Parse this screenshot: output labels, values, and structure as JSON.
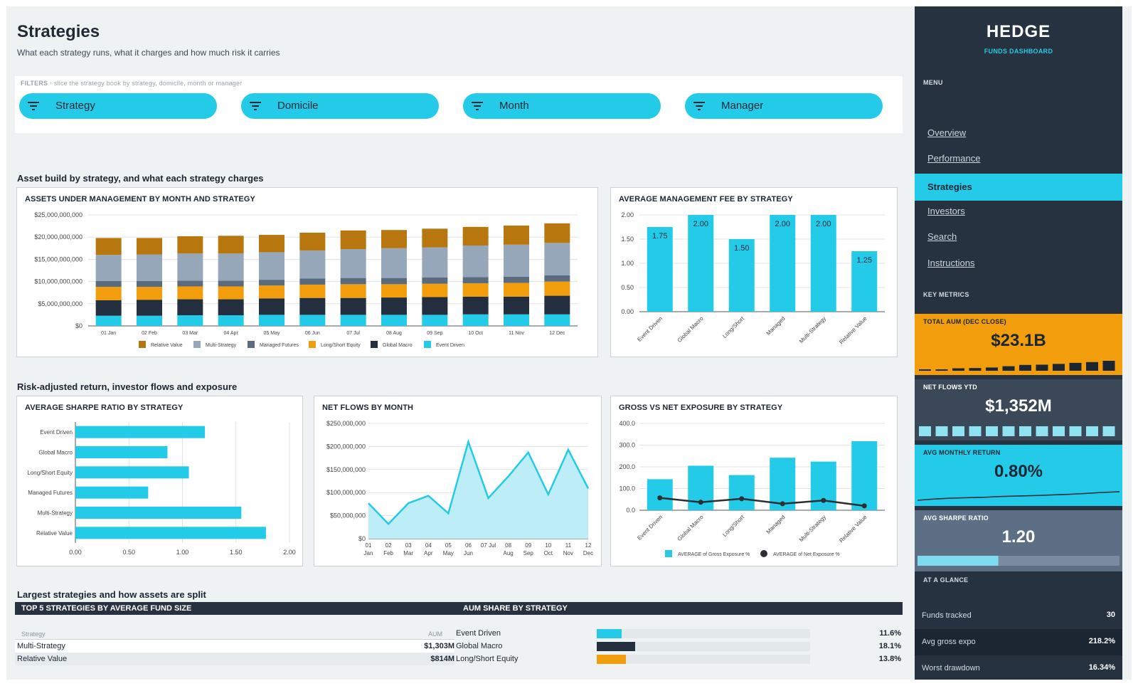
{
  "page": {
    "title": "Strategies",
    "subtitle": "What each strategy runs, what it charges and how much risk it carries"
  },
  "filters": {
    "caption": "FILTERS",
    "hint": "slice the strategy book by strategy, domicile, month or manager",
    "items": [
      {
        "label": "Strategy",
        "icon": "filter-icon"
      },
      {
        "label": "Domicile",
        "icon": "filter-icon"
      },
      {
        "label": "Month",
        "icon": "filter-icon"
      },
      {
        "label": "Manager",
        "icon": "filter-icon"
      }
    ]
  },
  "sections": {
    "s1": "Asset build by strategy, and what each strategy charges",
    "s2": "Risk-adjusted return, investor flows and exposure",
    "s3": "Largest strategies and how assets are split"
  },
  "colors": {
    "accent": "#24cbe8",
    "navy": "#263240",
    "orange": "#f29d0c",
    "relative_value": "#b8760f",
    "multi_strategy": "#95a7b8",
    "managed_futures": "#5a6b80",
    "long_short_equity": "#f29d0c",
    "global_macro": "#232f3e",
    "event_driven": "#24cbe8"
  },
  "chart_data": [
    {
      "id": "aum",
      "type": "bar",
      "stacked": true,
      "title": "ASSETS UNDER MANAGEMENT BY MONTH AND STRATEGY",
      "categories": [
        "01 Jan",
        "02 Feb",
        "03 Mar",
        "04 Apr",
        "05 May",
        "06 Jun",
        "07 Jul",
        "08 Aug",
        "09 Sep",
        "10 Oct",
        "11 Nov",
        "12 Dec"
      ],
      "ylim": [
        0,
        25000000000
      ],
      "yticks": [
        "$0",
        "$5,000,000,000",
        "$10,000,000,000",
        "$15,000,000,000",
        "$20,000,000,000",
        "$25,000,000,000"
      ],
      "legend": "bottom",
      "series": [
        {
          "name": "Event Driven",
          "values": [
            2300000000,
            2300000000,
            2400000000,
            2400000000,
            2500000000,
            2500000000,
            2500000000,
            2500000000,
            2500000000,
            2600000000,
            2600000000,
            2600000000
          ]
        },
        {
          "name": "Global Macro",
          "values": [
            3500000000,
            3600000000,
            3600000000,
            3600000000,
            3700000000,
            3800000000,
            3800000000,
            3900000000,
            4000000000,
            4000000000,
            4000000000,
            4200000000
          ]
        },
        {
          "name": "Long/Short Equity",
          "values": [
            3000000000,
            2900000000,
            2900000000,
            2900000000,
            2900000000,
            3000000000,
            3100000000,
            3000000000,
            3000000000,
            3000000000,
            3100000000,
            3200000000
          ]
        },
        {
          "name": "Managed Futures",
          "values": [
            1300000000,
            1300000000,
            1300000000,
            1300000000,
            1300000000,
            1400000000,
            1400000000,
            1400000000,
            1400000000,
            1400000000,
            1400000000,
            1400000000
          ]
        },
        {
          "name": "Multi-Strategy",
          "values": [
            5900000000,
            6000000000,
            6100000000,
            6100000000,
            6200000000,
            6300000000,
            6500000000,
            6700000000,
            6800000000,
            7100000000,
            7200000000,
            7300000000
          ]
        },
        {
          "name": "Relative Value",
          "values": [
            3800000000,
            3700000000,
            3900000000,
            4000000000,
            3900000000,
            4000000000,
            4200000000,
            4100000000,
            4200000000,
            4200000000,
            4300000000,
            4400000000
          ]
        }
      ]
    },
    {
      "id": "fee",
      "type": "bar",
      "title": "AVERAGE MANAGEMENT FEE BY STRATEGY",
      "categories": [
        "Event Driven",
        "Global Macro",
        "Long/Short",
        "Managed",
        "Multi-Strategy",
        "Relative Value"
      ],
      "values": [
        1.75,
        2.0,
        1.5,
        2.0,
        2.0,
        1.25
      ],
      "labels": [
        "1.75",
        "2.00",
        "1.50",
        "2.00",
        "2.00",
        "1.25"
      ],
      "ylim": [
        0,
        2
      ],
      "yticks": [
        "0.00",
        "0.50",
        "1.00",
        "1.50",
        "2.00"
      ]
    },
    {
      "id": "sharpe",
      "type": "bar",
      "orientation": "horizontal",
      "title": "AVERAGE SHARPE RATIO BY STRATEGY",
      "categories": [
        "Event Driven",
        "Global Macro",
        "Long/Short Equity",
        "Managed Futures",
        "Multi-Strategy",
        "Relative Value"
      ],
      "values": [
        1.21,
        0.86,
        1.06,
        0.68,
        1.55,
        1.78
      ],
      "xlim": [
        0,
        2
      ],
      "xticks": [
        "0.00",
        "0.50",
        "1.00",
        "1.50",
        "2.00"
      ]
    },
    {
      "id": "flows",
      "type": "area",
      "title": "NET FLOWS BY MONTH",
      "x_top": [
        "01",
        "02",
        "03",
        "04",
        "05",
        "06",
        "07 Jul",
        "08",
        "09",
        "10",
        "11",
        "12"
      ],
      "x_bottom": [
        "Jan",
        "Feb",
        "Mar",
        "Apr",
        "May",
        "Jun",
        "",
        "Aug",
        "Sep",
        "Oct",
        "Nov",
        "Dec"
      ],
      "values": [
        77000000,
        32000000,
        77000000,
        93000000,
        55000000,
        210000000,
        88000000,
        135000000,
        187000000,
        96000000,
        193000000,
        109000000
      ],
      "ylim": [
        0,
        250000000
      ],
      "yticks": [
        "$0",
        "$50,000,000",
        "$100,000,000",
        "$150,000,000",
        "$200,000,000",
        "$250,000,000"
      ]
    },
    {
      "id": "exposure",
      "type": "bar",
      "title": "GROSS VS NET EXPOSURE BY STRATEGY",
      "categories": [
        "Event Driven",
        "Global Macro",
        "Long/Short",
        "Managed",
        "Multi-Strategy",
        "Relative Value"
      ],
      "ylim": [
        0,
        400
      ],
      "yticks": [
        "0.0",
        "100.0",
        "200.0",
        "300.0",
        "400.0"
      ],
      "legend": "bottom",
      "series": [
        {
          "name": "AVERAGE of Gross Exposure %",
          "kind": "bar",
          "values": [
            143,
            205,
            162,
            242,
            224,
            318
          ]
        },
        {
          "name": "AVERAGE of Net Exposure %",
          "kind": "line",
          "values": [
            57,
            37,
            53,
            30,
            45,
            20
          ]
        }
      ]
    }
  ],
  "tables": {
    "top5": {
      "title": "TOP 5 STRATEGIES BY AVERAGE FUND SIZE",
      "col_strategy": "Strategy",
      "col_aum": "AUM",
      "rows": [
        {
          "strategy": "Multi-Strategy",
          "aum": "$1,303M"
        },
        {
          "strategy": "Relative Value",
          "aum": "$814M"
        }
      ]
    },
    "share": {
      "title": "AUM SHARE BY STRATEGY",
      "rows": [
        {
          "strategy": "Event Driven",
          "share": 11.6,
          "label": "11.6%",
          "color": "#24cbe8"
        },
        {
          "strategy": "Global Macro",
          "share": 18.1,
          "label": "18.1%",
          "color": "#232f3e"
        },
        {
          "strategy": "Long/Short Equity",
          "share": 13.8,
          "label": "13.8%",
          "color": "#f29d0c"
        }
      ]
    }
  },
  "sidebar": {
    "brand": "HEDGE",
    "brand_sub": "FUNDS DASHBOARD",
    "menu_caption": "MENU",
    "nav": [
      "Overview",
      "Performance",
      "Strategies",
      "Investors",
      "Search",
      "Instructions"
    ],
    "active": "Strategies",
    "metrics_caption": "KEY METRICS",
    "kpis": {
      "aum": {
        "caption": "TOTAL AUM (DEC CLOSE)",
        "value": "$23.1B"
      },
      "flows": {
        "caption": "NET FLOWS YTD",
        "value": "$1,352M"
      },
      "return": {
        "caption": "AVG MONTHLY RETURN",
        "value": "0.80%"
      },
      "sharpe": {
        "caption": "AVG SHARPE RATIO",
        "value": "1.20",
        "level": 0.4
      }
    },
    "glance_caption": "AT A GLANCE",
    "glance": [
      {
        "label": "Funds tracked",
        "value": "30"
      },
      {
        "label": "Avg gross expo",
        "value": "218.2%"
      },
      {
        "label": "Worst drawdown",
        "value": "16.34%"
      }
    ]
  }
}
